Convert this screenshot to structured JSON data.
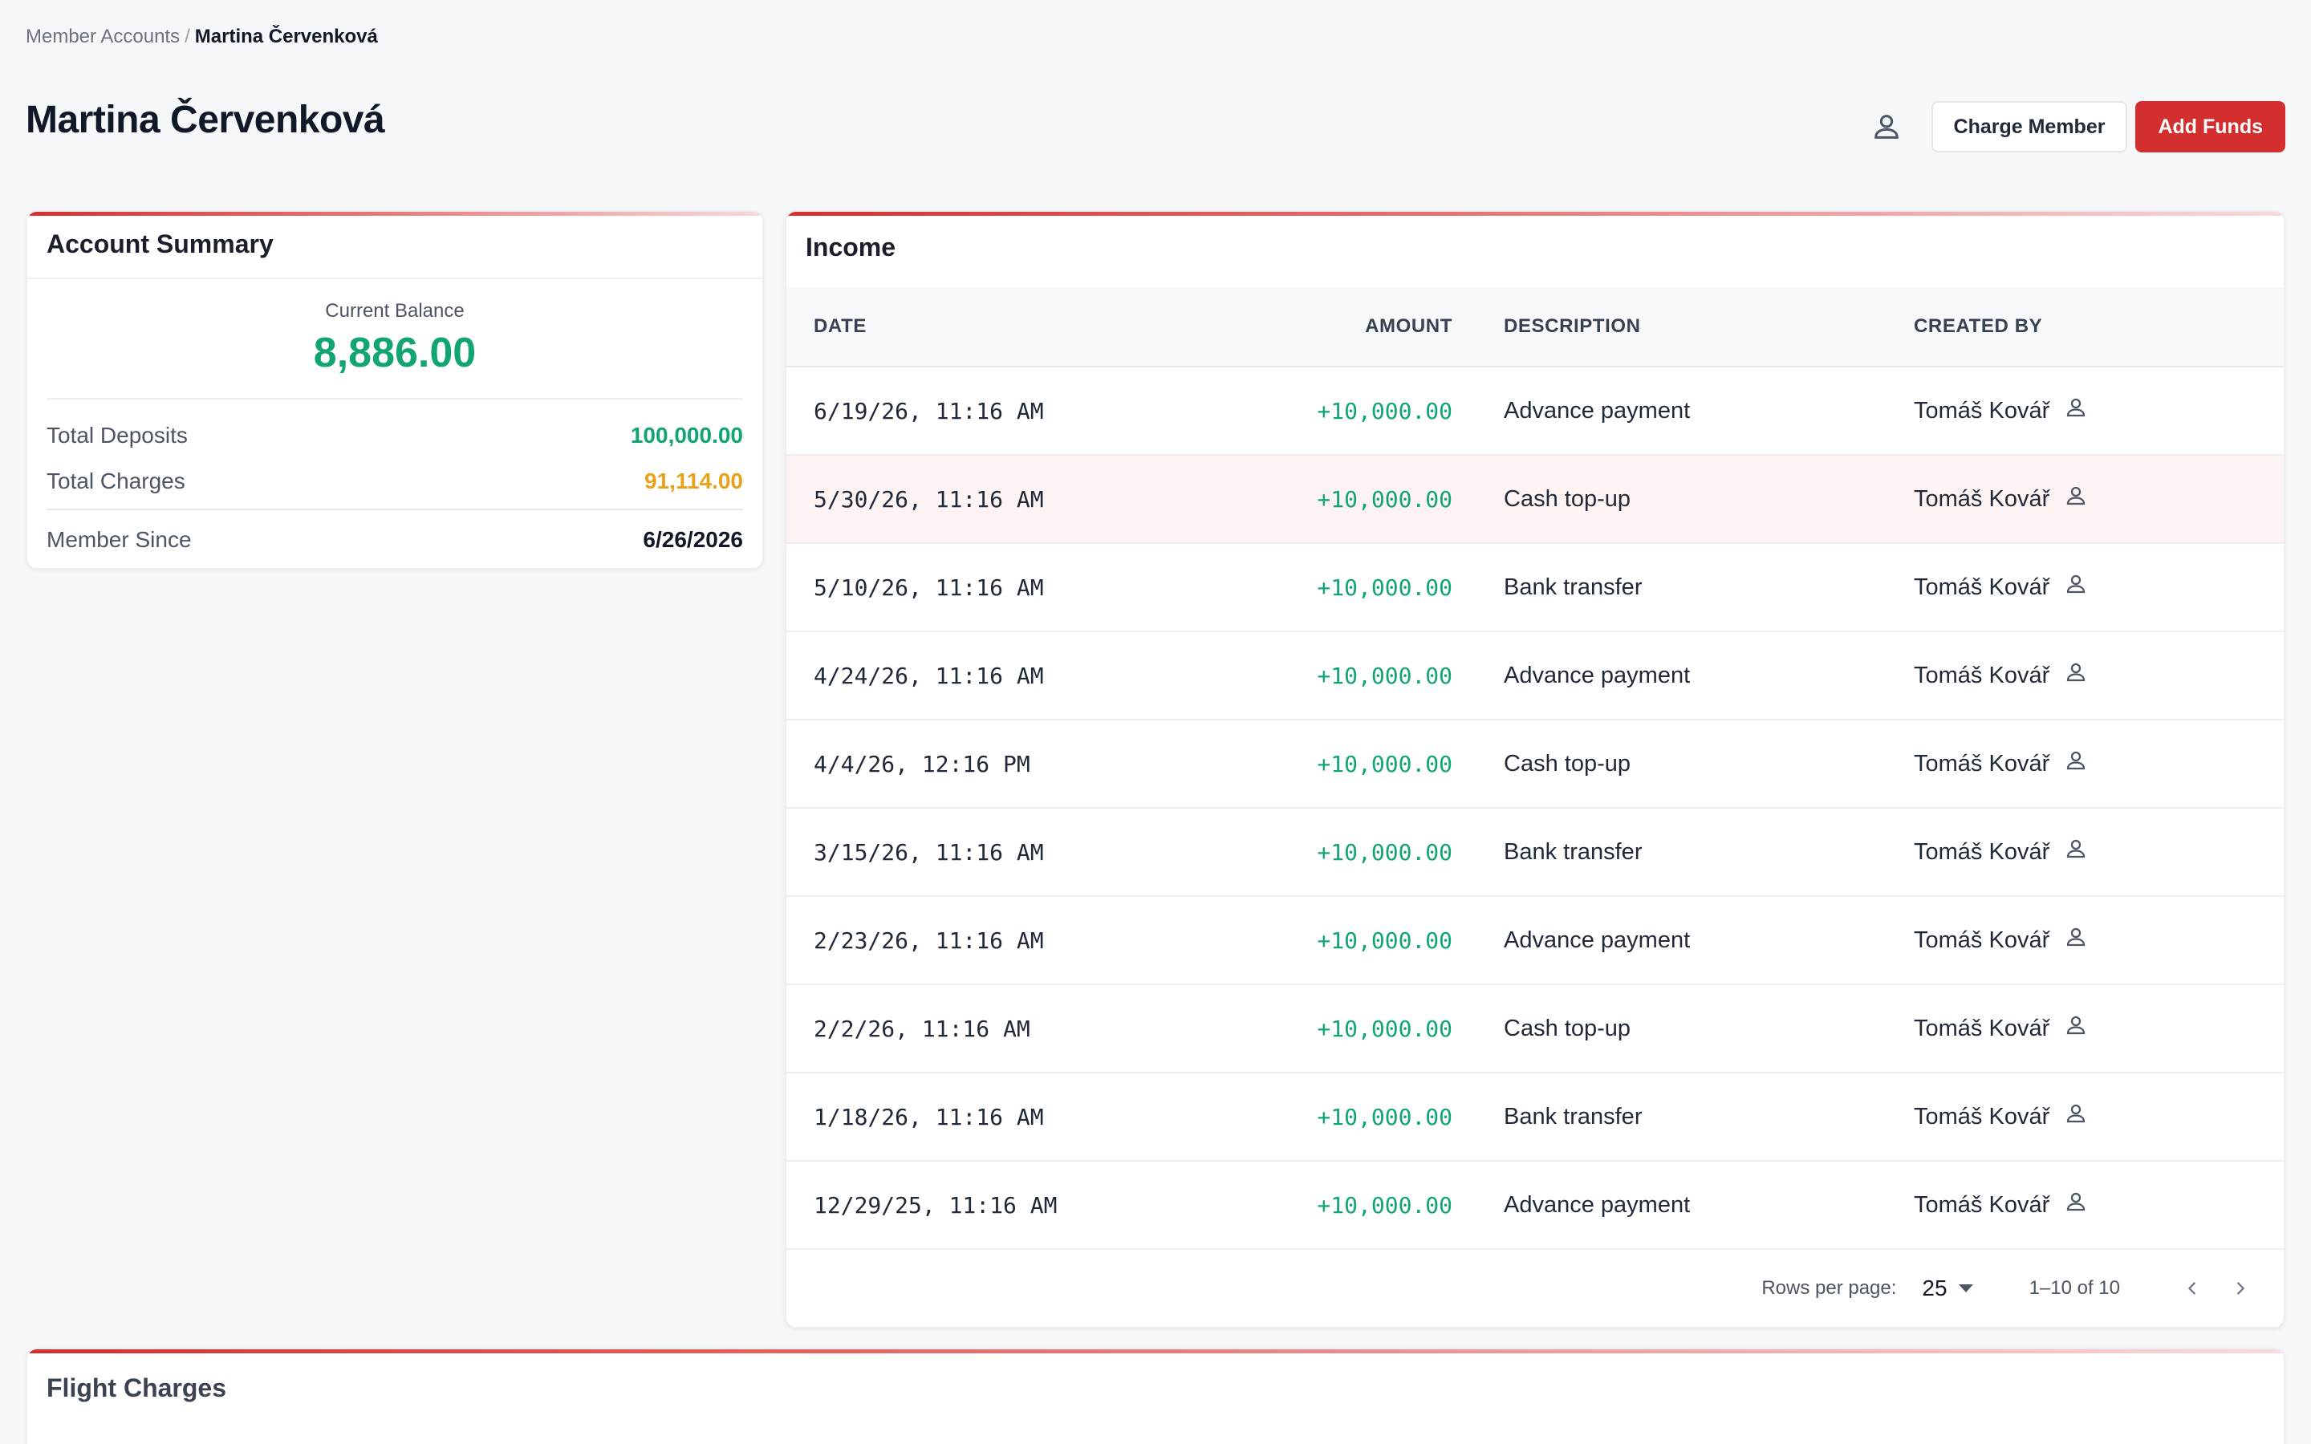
{
  "breadcrumb": {
    "parent": "Member Accounts",
    "separator": "/",
    "current": "Martina Červenková"
  },
  "page_title": "Martina Červenková",
  "actions": {
    "profile_icon": "person-icon",
    "charge_label": "Charge Member",
    "add_funds_label": "Add Funds"
  },
  "summary": {
    "title": "Account Summary",
    "balance_label": "Current Balance",
    "balance_value": "8,886.00",
    "deposits_label": "Total Deposits",
    "deposits_value": "100,000.00",
    "charges_label": "Total Charges",
    "charges_value": "91,114.00",
    "since_label": "Member Since",
    "since_value": "6/26/2026"
  },
  "income": {
    "title": "Income",
    "columns": [
      "DATE",
      "AMOUNT",
      "DESCRIPTION",
      "CREATED BY"
    ],
    "rows": [
      {
        "date": "6/19/26, 11:16 AM",
        "amount": "+10,000.00",
        "description": "Advance payment",
        "created_by": "Tomáš Kovář"
      },
      {
        "date": "5/30/26, 11:16 AM",
        "amount": "+10,000.00",
        "description": "Cash top-up",
        "created_by": "Tomáš Kovář"
      },
      {
        "date": "5/10/26, 11:16 AM",
        "amount": "+10,000.00",
        "description": "Bank transfer",
        "created_by": "Tomáš Kovář"
      },
      {
        "date": "4/24/26, 11:16 AM",
        "amount": "+10,000.00",
        "description": "Advance payment",
        "created_by": "Tomáš Kovář"
      },
      {
        "date": "4/4/26, 12:16 PM",
        "amount": "+10,000.00",
        "description": "Cash top-up",
        "created_by": "Tomáš Kovář"
      },
      {
        "date": "3/15/26, 11:16 AM",
        "amount": "+10,000.00",
        "description": "Bank transfer",
        "created_by": "Tomáš Kovář"
      },
      {
        "date": "2/23/26, 11:16 AM",
        "amount": "+10,000.00",
        "description": "Advance payment",
        "created_by": "Tomáš Kovář"
      },
      {
        "date": "2/2/26, 11:16 AM",
        "amount": "+10,000.00",
        "description": "Cash top-up",
        "created_by": "Tomáš Kovář"
      },
      {
        "date": "1/18/26, 11:16 AM",
        "amount": "+10,000.00",
        "description": "Bank transfer",
        "created_by": "Tomáš Kovář"
      },
      {
        "date": "12/29/25, 11:16 AM",
        "amount": "+10,000.00",
        "description": "Advance payment",
        "created_by": "Tomáš Kovář"
      }
    ],
    "highlighted_row": 1,
    "pagination": {
      "rows_per_page_label": "Rows per page:",
      "rows_per_page": "25",
      "range": "1–10 of 10"
    }
  },
  "flight_charges": {
    "title": "Flight Charges"
  },
  "colors": {
    "accent": "#d32f2f",
    "positive": "#12a572",
    "warning": "#e7a21a"
  }
}
